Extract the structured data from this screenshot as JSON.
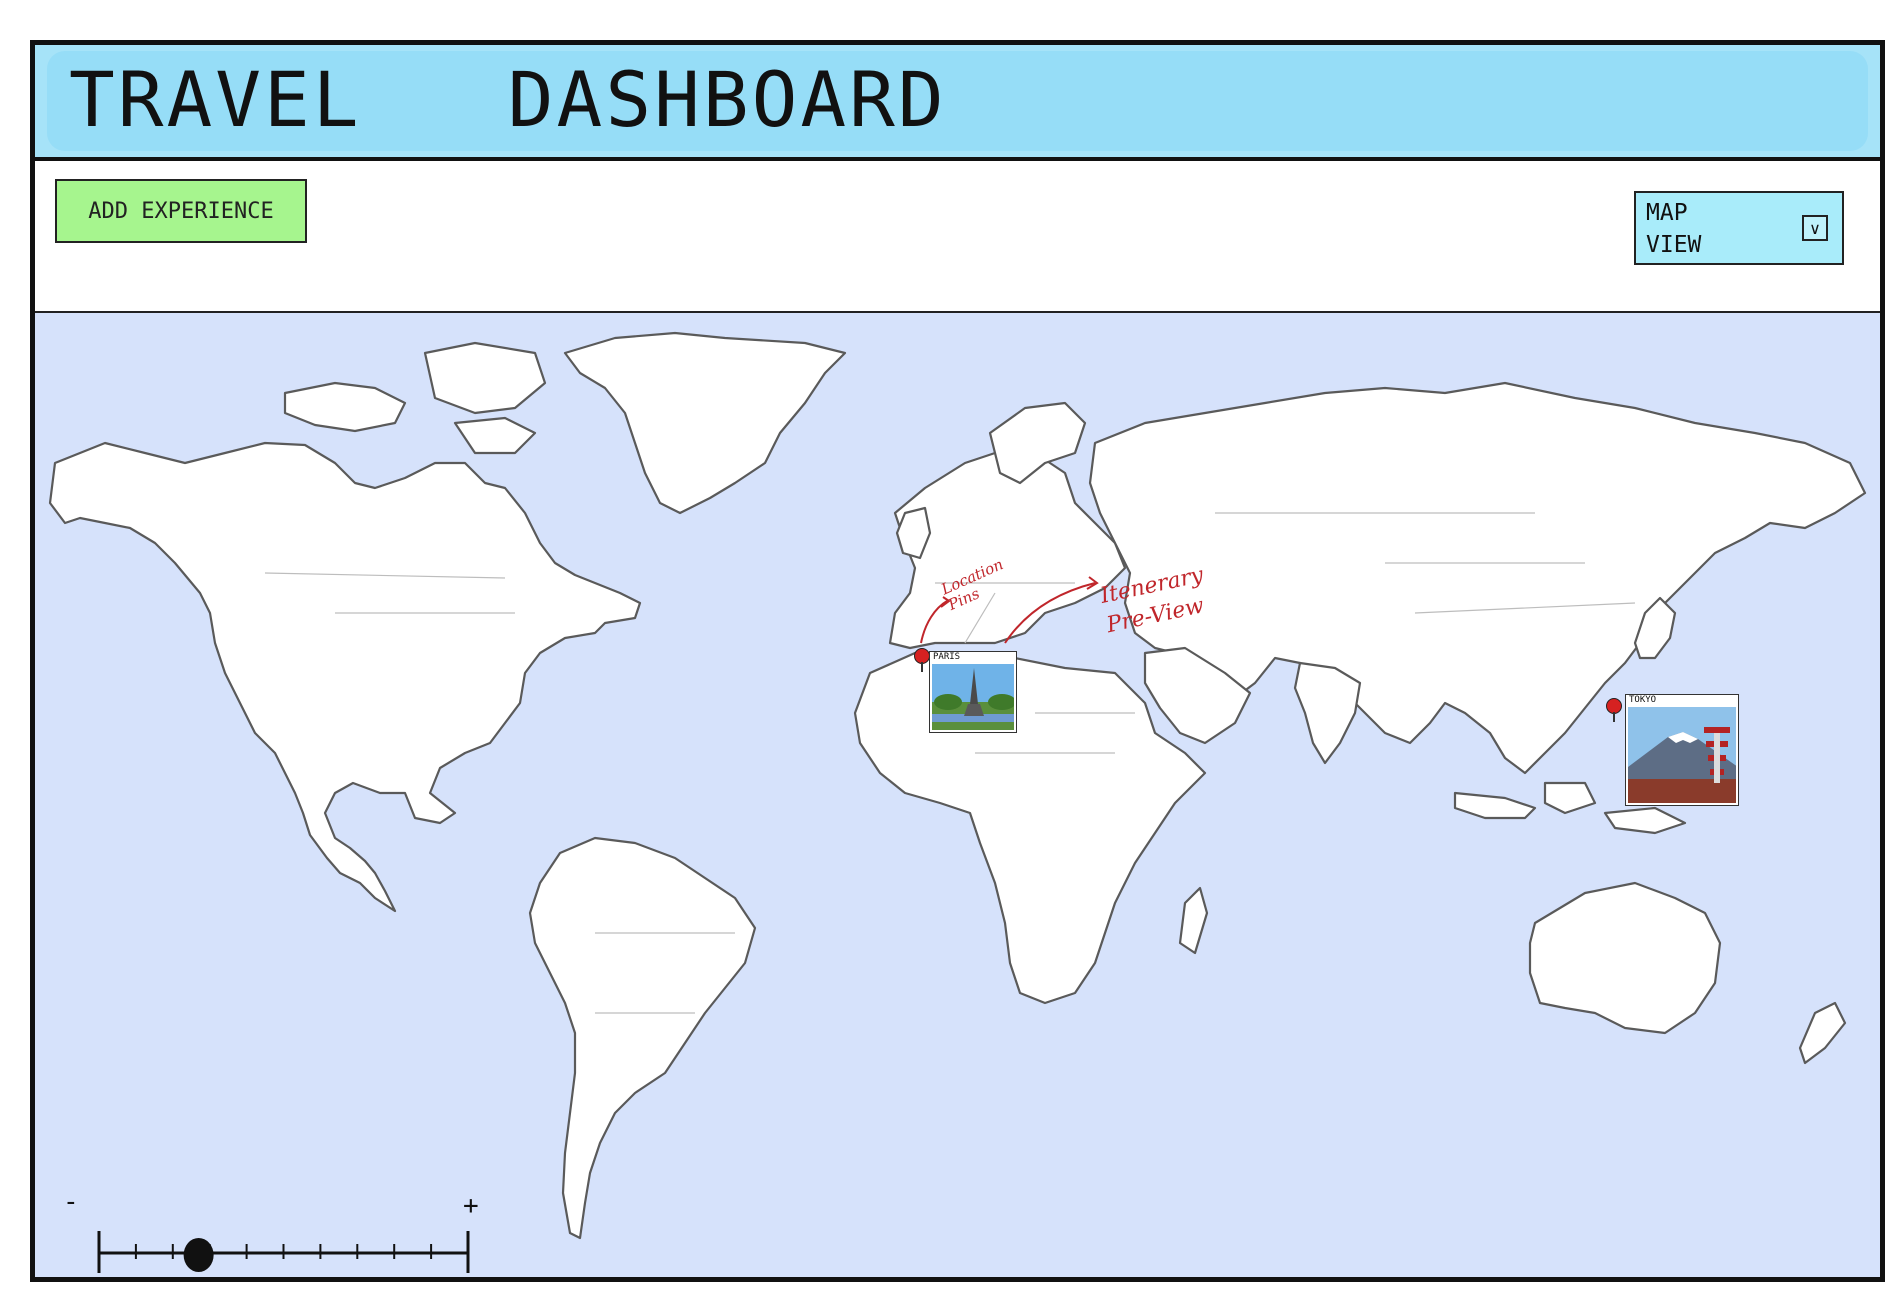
{
  "header": {
    "title": "TRAVEL   DASHBOARD"
  },
  "toolbar": {
    "add_button_label": "ADD  EXPERIENCE",
    "view_select": {
      "selected": "MAP\nVIEW"
    }
  },
  "map": {
    "pins": [
      {
        "city": "PARIS"
      },
      {
        "city": "TOKYO"
      }
    ],
    "annotations": {
      "location_pins": "Location\nPins",
      "itinerary_preview": "Itenerary\nPre-View"
    },
    "zoom": {
      "minus": "-",
      "plus": "+",
      "level": 0.27,
      "ticks": 10
    }
  },
  "colors": {
    "header": "#a6e3f8",
    "add_button": "#a6f58e",
    "map_ocean": "#d6e2fb",
    "pin": "#d62121",
    "annotation": "#c0262b"
  }
}
